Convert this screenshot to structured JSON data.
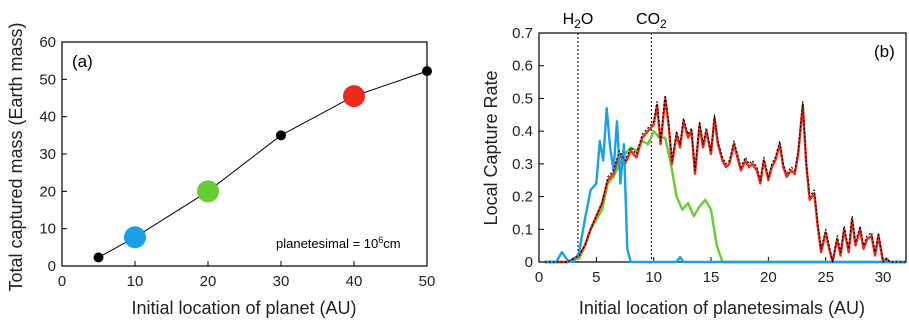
{
  "chart_data": [
    {
      "type": "scatter",
      "panel_label": "(a)",
      "xlabel": "Initial location of planet (AU)",
      "ylabel": "Total captured mass (Earth mass)",
      "xlim": [
        0,
        50
      ],
      "ylim": [
        0,
        60
      ],
      "xticks": [
        0,
        10,
        20,
        30,
        40,
        50
      ],
      "yticks": [
        0,
        10,
        20,
        30,
        40,
        50,
        60
      ],
      "annotation": "planetesimal = 10",
      "annotation_sup": "6",
      "annotation_tail": "cm",
      "line_color": "#000000",
      "points": [
        {
          "x": 5,
          "y": 2.3,
          "color": "#000000",
          "size": "small"
        },
        {
          "x": 10,
          "y": 7.7,
          "color": "#1aa0e8",
          "size": "large"
        },
        {
          "x": 20,
          "y": 20.0,
          "color": "#66cc33",
          "size": "large"
        },
        {
          "x": 30,
          "y": 35.0,
          "color": "#000000",
          "size": "small"
        },
        {
          "x": 40,
          "y": 45.5,
          "color": "#ee2a1a",
          "size": "large"
        },
        {
          "x": 50,
          "y": 52.2,
          "color": "#000000",
          "size": "small"
        }
      ]
    },
    {
      "type": "line",
      "panel_label": "(b)",
      "xlabel": "Initial location of planetesimals (AU)",
      "ylabel": "Local Capture Rate",
      "xlim": [
        0,
        32
      ],
      "ylim": [
        0,
        0.7
      ],
      "xticks": [
        0,
        5,
        10,
        15,
        20,
        25,
        30
      ],
      "yticks": [
        0,
        0.1,
        0.2,
        0.3,
        0.4,
        0.5,
        0.6,
        0.7
      ],
      "reference_lines": [
        {
          "x": 3.4,
          "label": "H",
          "sub": "2",
          "tail": "O"
        },
        {
          "x": 9.8,
          "label": "CO",
          "sub": "2",
          "tail": ""
        }
      ],
      "series": [
        {
          "color": "#1aa0e8",
          "x": [
            0.5,
            1.5,
            2.0,
            2.5,
            3.0,
            3.5,
            4.0,
            4.5,
            5.0,
            5.3,
            5.6,
            5.9,
            6.2,
            6.5,
            6.8,
            7.1,
            7.4,
            7.7,
            8.0,
            12.0,
            12.3,
            12.6,
            32
          ],
          "y": [
            0.0,
            0.0,
            0.03,
            0.005,
            0.0,
            0.03,
            0.13,
            0.22,
            0.24,
            0.37,
            0.31,
            0.47,
            0.35,
            0.28,
            0.43,
            0.24,
            0.36,
            0.04,
            0.0,
            0.0,
            0.015,
            0.0,
            0.0
          ]
        },
        {
          "color": "#66cc33",
          "x": [
            0.5,
            2.5,
            3.0,
            3.5,
            4.0,
            4.5,
            5.0,
            5.5,
            6.0,
            6.5,
            7.0,
            7.5,
            8.0,
            8.5,
            9.0,
            9.5,
            10.0,
            10.5,
            11.0,
            11.5,
            12.0,
            12.5,
            13.0,
            13.5,
            14.0,
            14.5,
            15.0,
            15.5,
            16.0,
            25.0,
            32
          ],
          "y": [
            0.0,
            0.0,
            0.01,
            0.01,
            0.05,
            0.1,
            0.13,
            0.16,
            0.24,
            0.26,
            0.3,
            0.33,
            0.35,
            0.34,
            0.37,
            0.36,
            0.4,
            0.38,
            0.38,
            0.3,
            0.2,
            0.16,
            0.18,
            0.14,
            0.17,
            0.19,
            0.16,
            0.05,
            0.0,
            0.0,
            0.0
          ]
        },
        {
          "color": "#ee2a1a",
          "x": [
            0.5,
            2.5,
            3.0,
            3.5,
            4.0,
            4.5,
            5.0,
            5.5,
            6.0,
            6.5,
            7.0,
            7.5,
            8.0,
            8.5,
            9.0,
            9.5,
            10.0,
            10.3,
            10.6,
            11.0,
            11.3,
            11.6,
            12.0,
            12.3,
            12.6,
            13.0,
            13.3,
            13.6,
            14.0,
            14.3,
            14.6,
            15.0,
            15.3,
            15.6,
            16.0,
            16.3,
            16.6,
            17.0,
            17.3,
            17.6,
            18.0,
            18.3,
            18.6,
            19.0,
            19.3,
            19.6,
            20.0,
            20.3,
            20.6,
            21.0,
            21.3,
            21.6,
            22.0,
            22.3,
            22.6,
            23.0,
            23.3,
            23.6,
            24.0,
            24.3,
            24.6,
            25.0,
            25.3,
            25.6,
            26.0,
            26.3,
            26.6,
            27.0,
            27.3,
            27.6,
            28.0,
            28.3,
            28.6,
            29.0,
            29.3,
            29.6,
            30.0,
            30.3,
            30.6,
            31.0,
            32
          ],
          "y": [
            0.0,
            0.0,
            0.01,
            0.02,
            0.05,
            0.1,
            0.14,
            0.18,
            0.25,
            0.27,
            0.33,
            0.3,
            0.34,
            0.32,
            0.38,
            0.4,
            0.42,
            0.48,
            0.36,
            0.5,
            0.42,
            0.3,
            0.39,
            0.35,
            0.43,
            0.38,
            0.4,
            0.27,
            0.42,
            0.35,
            0.4,
            0.33,
            0.44,
            0.36,
            0.31,
            0.29,
            0.3,
            0.36,
            0.32,
            0.28,
            0.31,
            0.29,
            0.3,
            0.28,
            0.24,
            0.31,
            0.25,
            0.29,
            0.31,
            0.36,
            0.29,
            0.26,
            0.28,
            0.27,
            0.33,
            0.48,
            0.3,
            0.19,
            0.21,
            0.11,
            0.03,
            0.09,
            0.04,
            0.0,
            0.07,
            0.02,
            0.1,
            0.03,
            0.13,
            0.05,
            0.1,
            0.04,
            0.07,
            0.08,
            0.02,
            0.08,
            0.0,
            0.01,
            0.0,
            0.0,
            0.0
          ]
        },
        {
          "color": "#000000",
          "style": "dotted",
          "x": [
            0.5,
            2.5,
            3.0,
            3.5,
            4.0,
            4.5,
            5.0,
            5.5,
            6.0,
            6.5,
            7.0,
            7.5,
            8.0,
            8.5,
            9.0,
            9.5,
            10.0,
            10.3,
            10.6,
            11.0,
            11.3,
            11.6,
            12.0,
            12.3,
            12.6,
            13.0,
            13.3,
            13.6,
            14.0,
            14.3,
            14.6,
            15.0,
            15.3,
            15.6,
            16.0,
            16.3,
            16.6,
            17.0,
            17.3,
            17.6,
            18.0,
            18.3,
            18.6,
            19.0,
            19.3,
            19.6,
            20.0,
            20.3,
            20.6,
            21.0,
            21.3,
            21.6,
            22.0,
            22.3,
            22.6,
            23.0,
            23.3,
            23.6,
            24.0,
            24.3,
            24.6,
            25.0,
            25.3,
            25.6,
            26.0,
            26.3,
            26.6,
            27.0,
            27.3,
            27.6,
            28.0,
            28.3,
            28.6,
            29.0,
            29.3,
            29.6,
            30.0,
            30.3,
            30.6,
            31.0,
            32
          ],
          "y": [
            0.0,
            0.0,
            0.01,
            0.02,
            0.05,
            0.1,
            0.14,
            0.18,
            0.26,
            0.28,
            0.34,
            0.31,
            0.35,
            0.33,
            0.39,
            0.41,
            0.43,
            0.49,
            0.37,
            0.51,
            0.43,
            0.31,
            0.4,
            0.36,
            0.44,
            0.39,
            0.41,
            0.28,
            0.43,
            0.36,
            0.41,
            0.34,
            0.45,
            0.37,
            0.32,
            0.3,
            0.31,
            0.37,
            0.33,
            0.29,
            0.32,
            0.3,
            0.31,
            0.29,
            0.25,
            0.32,
            0.26,
            0.3,
            0.32,
            0.37,
            0.3,
            0.27,
            0.29,
            0.28,
            0.34,
            0.49,
            0.31,
            0.2,
            0.22,
            0.12,
            0.04,
            0.1,
            0.05,
            0.0,
            0.08,
            0.03,
            0.11,
            0.04,
            0.14,
            0.06,
            0.11,
            0.05,
            0.08,
            0.09,
            0.03,
            0.09,
            0.0,
            0.01,
            0.0,
            0.0,
            0.0
          ]
        }
      ]
    }
  ]
}
